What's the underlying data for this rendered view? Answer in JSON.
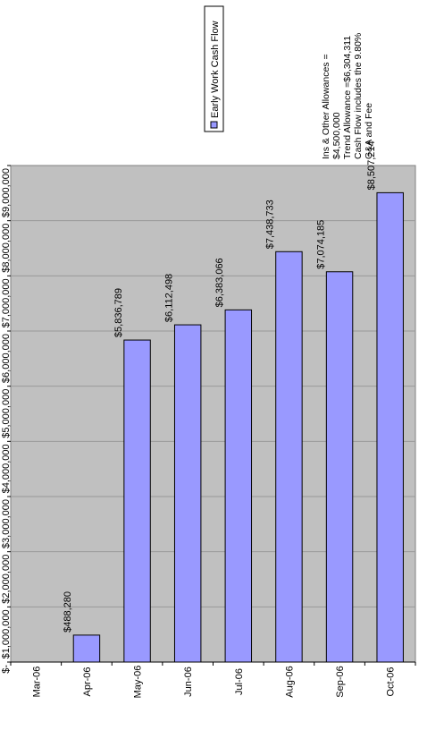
{
  "chart_data": {
    "type": "bar",
    "orientation": "vertical bars, page rotated 90 degrees clockwise",
    "categories": [
      "Mar-06",
      "Apr-06",
      "May-06",
      "Jun-06",
      "Jul-06",
      "Aug-06",
      "Sep-06",
      "Oct-06"
    ],
    "series": [
      {
        "name": "Early Work Cash Flow",
        "values": [
          null,
          488280,
          5836789,
          6112498,
          6383066,
          7438733,
          7074185,
          8507214
        ],
        "labels": [
          "",
          "$488,280",
          "$5,836,789",
          "$6,112,498",
          "$6,383,066",
          "$7,438,733",
          "$7,074,185",
          "$8,507,214"
        ]
      }
    ],
    "ylim": [
      0,
      9000000
    ],
    "y_ticks": [
      0,
      1000000,
      2000000,
      3000000,
      4000000,
      5000000,
      6000000,
      7000000,
      8000000,
      9000000
    ],
    "y_tick_labels": [
      "$-",
      "$1,000,000",
      "$2,000,000",
      "$3,000,000",
      "$4,000,000",
      "$5,000,000",
      "$6,000,000",
      "$7,000,000",
      "$8,000,000",
      "$9,000,000"
    ],
    "grid": true,
    "legend": "top-right",
    "notes": [
      "Ins & Other Allowances =",
      "$4,500,000",
      "Trend Allowance =$6,304,311",
      "Cash Flow includes the 9.80%",
      "G&A and Fee"
    ]
  },
  "colors": {
    "plot_background": "#c0c0c0",
    "bar_fill": "#9999ff",
    "bar_stroke": "#000000",
    "gridline": "#999999"
  }
}
